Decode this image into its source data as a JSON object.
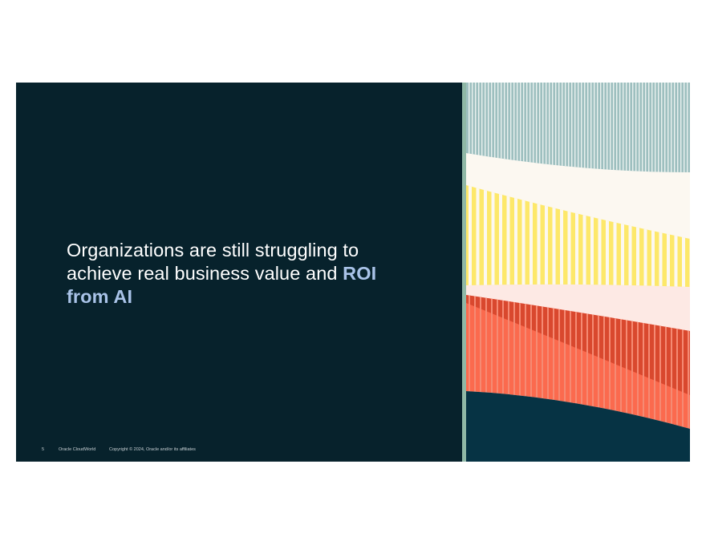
{
  "slide": {
    "headline_main": "Organizations are still struggling to achieve real business value and ",
    "headline_accent": "ROI from AI",
    "footer": {
      "page_number": "5",
      "brand": "Oracle CloudWorld",
      "copyright": "Copyright © 2024, Oracle and/or its affiliates"
    }
  },
  "colors": {
    "background": "#07222c",
    "accent_text": "#a9c3e8",
    "divider": "#8fb8a6",
    "teal_band": "#9dbfbf",
    "cream_band": "#fcf8f1",
    "yellow_band": "#fde86a",
    "pink_band": "#fde9e4",
    "red_band": "#fb6a4e",
    "dark_red": "#d9482e",
    "navy_band": "#063344"
  }
}
